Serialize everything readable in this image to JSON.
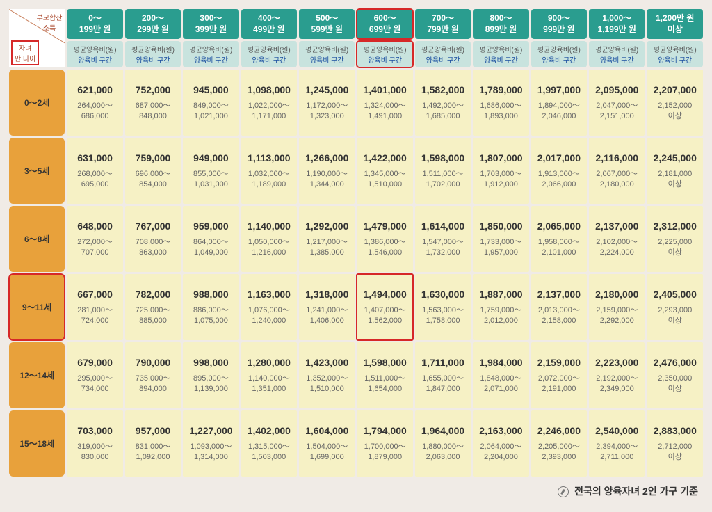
{
  "corner": {
    "top": "부모합산\n소득",
    "bottom": "자녀\n만 나이"
  },
  "subheader": {
    "line1": "평균양육비(원)",
    "line2": "양육비 구간"
  },
  "income_brackets": [
    "0～\n199만 원",
    "200～\n299만 원",
    "300～\n399만 원",
    "400～\n499만 원",
    "500～\n599만 원",
    "600～\n699만 원",
    "700～\n799만 원",
    "800～\n899만 원",
    "900～\n999만 원",
    "1,000～\n1,199만 원",
    "1,200만 원\n이상"
  ],
  "age_brackets": [
    "0～2세",
    "3～5세",
    "6～8세",
    "9～11세",
    "12～14세",
    "15～18세"
  ],
  "highlighted": {
    "income_col": 5,
    "age_row": 3,
    "cell": [
      3,
      5
    ]
  },
  "cells": [
    [
      {
        "avg": "621,000",
        "range": "264,000～\n686,000"
      },
      {
        "avg": "752,000",
        "range": "687,000～\n848,000"
      },
      {
        "avg": "945,000",
        "range": "849,000～\n1,021,000"
      },
      {
        "avg": "1,098,000",
        "range": "1,022,000～\n1,171,000"
      },
      {
        "avg": "1,245,000",
        "range": "1,172,000～\n1,323,000"
      },
      {
        "avg": "1,401,000",
        "range": "1,324,000～\n1,491,000"
      },
      {
        "avg": "1,582,000",
        "range": "1,492,000～\n1,685,000"
      },
      {
        "avg": "1,789,000",
        "range": "1,686,000～\n1,893,000"
      },
      {
        "avg": "1,997,000",
        "range": "1,894,000～\n2,046,000"
      },
      {
        "avg": "2,095,000",
        "range": "2,047,000～\n2,151,000"
      },
      {
        "avg": "2,207,000",
        "range": "2,152,000\n이상"
      }
    ],
    [
      {
        "avg": "631,000",
        "range": "268,000～\n695,000"
      },
      {
        "avg": "759,000",
        "range": "696,000～\n854,000"
      },
      {
        "avg": "949,000",
        "range": "855,000～\n1,031,000"
      },
      {
        "avg": "1,113,000",
        "range": "1,032,000～\n1,189,000"
      },
      {
        "avg": "1,266,000",
        "range": "1,190,000～\n1,344,000"
      },
      {
        "avg": "1,422,000",
        "range": "1,345,000～\n1,510,000"
      },
      {
        "avg": "1,598,000",
        "range": "1,511,000～\n1,702,000"
      },
      {
        "avg": "1,807,000",
        "range": "1,703,000～\n1,912,000"
      },
      {
        "avg": "2,017,000",
        "range": "1,913,000～\n2,066,000"
      },
      {
        "avg": "2,116,000",
        "range": "2,067,000～\n2,180,000"
      },
      {
        "avg": "2,245,000",
        "range": "2,181,000\n이상"
      }
    ],
    [
      {
        "avg": "648,000",
        "range": "272,000～\n707,000"
      },
      {
        "avg": "767,000",
        "range": "708,000～\n863,000"
      },
      {
        "avg": "959,000",
        "range": "864,000～\n1,049,000"
      },
      {
        "avg": "1,140,000",
        "range": "1,050,000～\n1,216,000"
      },
      {
        "avg": "1,292,000",
        "range": "1,217,000～\n1,385,000"
      },
      {
        "avg": "1,479,000",
        "range": "1,386,000～\n1,546,000"
      },
      {
        "avg": "1,614,000",
        "range": "1,547,000～\n1,732,000"
      },
      {
        "avg": "1,850,000",
        "range": "1,733,000～\n1,957,000"
      },
      {
        "avg": "2,065,000",
        "range": "1,958,000～\n2,101,000"
      },
      {
        "avg": "2,137,000",
        "range": "2,102,000～\n2,224,000"
      },
      {
        "avg": "2,312,000",
        "range": "2,225,000\n이상"
      }
    ],
    [
      {
        "avg": "667,000",
        "range": "281,000～\n724,000"
      },
      {
        "avg": "782,000",
        "range": "725,000～\n885,000"
      },
      {
        "avg": "988,000",
        "range": "886,000～\n1,075,000"
      },
      {
        "avg": "1,163,000",
        "range": "1,076,000～\n1,240,000"
      },
      {
        "avg": "1,318,000",
        "range": "1,241,000～\n1,406,000"
      },
      {
        "avg": "1,494,000",
        "range": "1,407,000～\n1,562,000"
      },
      {
        "avg": "1,630,000",
        "range": "1,563,000～\n1,758,000"
      },
      {
        "avg": "1,887,000",
        "range": "1,759,000～\n2,012,000"
      },
      {
        "avg": "2,137,000",
        "range": "2,013,000～\n2,158,000"
      },
      {
        "avg": "2,180,000",
        "range": "2,159,000～\n2,292,000"
      },
      {
        "avg": "2,405,000",
        "range": "2,293,000\n이상"
      }
    ],
    [
      {
        "avg": "679,000",
        "range": "295,000～\n734,000"
      },
      {
        "avg": "790,000",
        "range": "735,000～\n894,000"
      },
      {
        "avg": "998,000",
        "range": "895,000～\n1,139,000"
      },
      {
        "avg": "1,280,000",
        "range": "1,140,000～\n1,351,000"
      },
      {
        "avg": "1,423,000",
        "range": "1,352,000～\n1,510,000"
      },
      {
        "avg": "1,598,000",
        "range": "1,511,000～\n1,654,000"
      },
      {
        "avg": "1,711,000",
        "range": "1,655,000～\n1,847,000"
      },
      {
        "avg": "1,984,000",
        "range": "1,848,000～\n2,071,000"
      },
      {
        "avg": "2,159,000",
        "range": "2,072,000～\n2,191,000"
      },
      {
        "avg": "2,223,000",
        "range": "2,192,000～\n2,349,000"
      },
      {
        "avg": "2,476,000",
        "range": "2,350,000\n이상"
      }
    ],
    [
      {
        "avg": "703,000",
        "range": "319,000～\n830,000"
      },
      {
        "avg": "957,000",
        "range": "831,000～\n1,092,000"
      },
      {
        "avg": "1,227,000",
        "range": "1,093,000～\n1,314,000"
      },
      {
        "avg": "1,402,000",
        "range": "1,315,000～\n1,503,000"
      },
      {
        "avg": "1,604,000",
        "range": "1,504,000～\n1,699,000"
      },
      {
        "avg": "1,794,000",
        "range": "1,700,000～\n1,879,000"
      },
      {
        "avg": "1,964,000",
        "range": "1,880,000～\n2,063,000"
      },
      {
        "avg": "2,163,000",
        "range": "2,064,000～\n2,204,000"
      },
      {
        "avg": "2,246,000",
        "range": "2,205,000～\n2,393,000"
      },
      {
        "avg": "2,540,000",
        "range": "2,394,000～\n2,711,000"
      },
      {
        "avg": "2,883,000",
        "range": "2,712,000\n이상"
      }
    ]
  ],
  "footer": "전국의 양육자녀 2인 가구 기준"
}
